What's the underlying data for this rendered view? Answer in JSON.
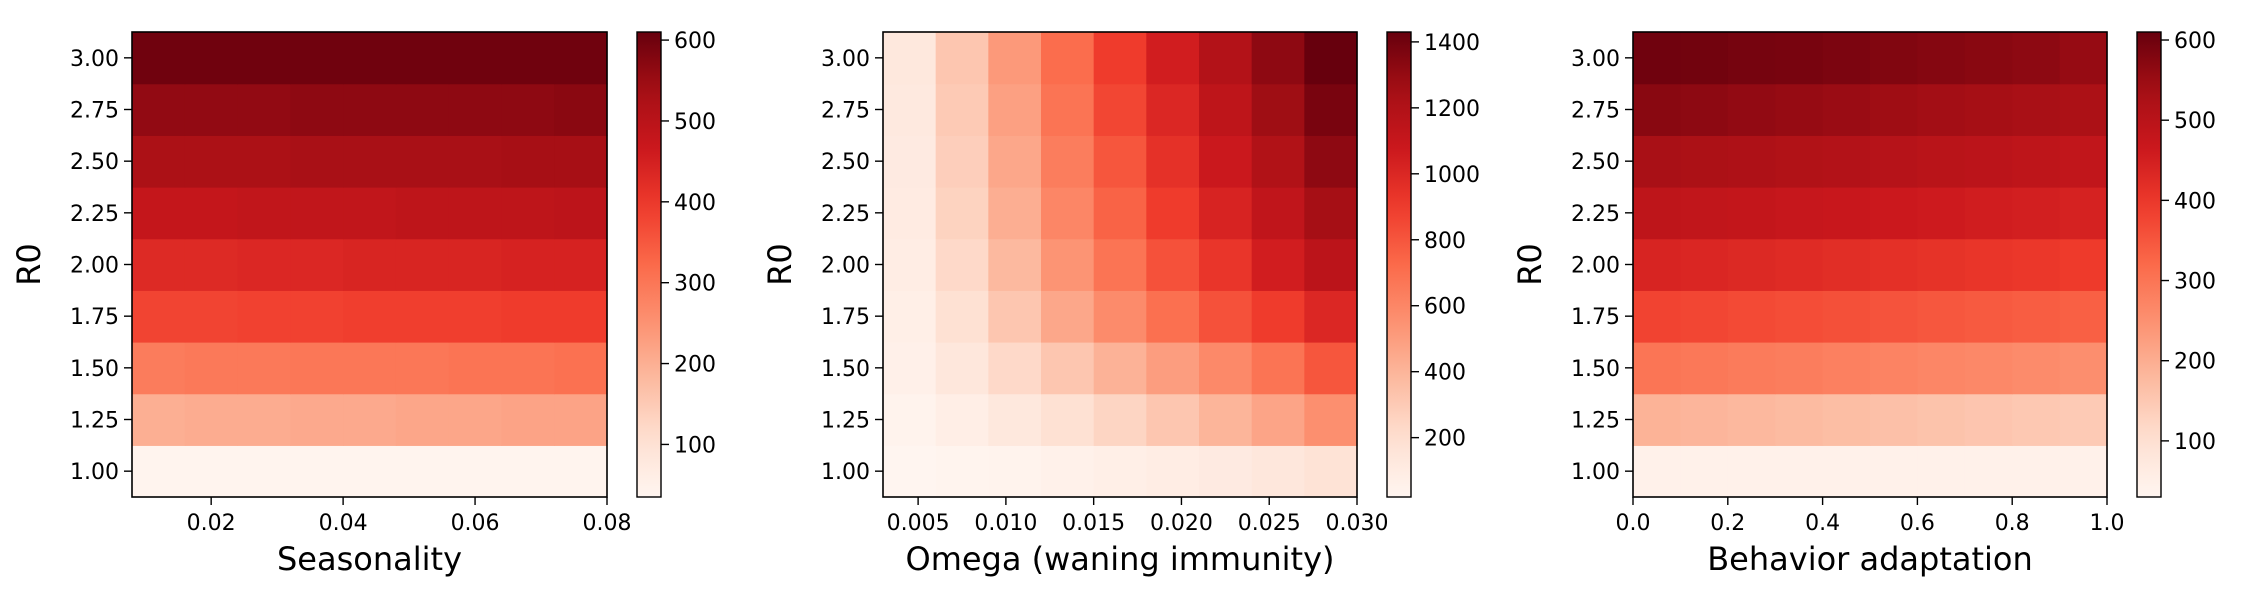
{
  "chart_data": [
    {
      "type": "heatmap",
      "xlabel": "Seasonality",
      "ylabel": "R0",
      "x": [
        0.008,
        0.016,
        0.024,
        0.032,
        0.04,
        0.048,
        0.056,
        0.064,
        0.072,
        0.08
      ],
      "xlim": [
        0.008,
        0.08
      ],
      "x_ticks": [
        0.02,
        0.04,
        0.06,
        0.08
      ],
      "x_tick_labels": [
        "0.02",
        "0.04",
        "0.06",
        "0.08"
      ],
      "y": [
        1.0,
        1.25,
        1.5,
        1.75,
        2.0,
        2.25,
        2.5,
        2.75,
        3.0
      ],
      "y_tick_labels": [
        "1.00",
        "1.25",
        "1.50",
        "1.75",
        "2.00",
        "2.25",
        "2.50",
        "2.75",
        "3.00"
      ],
      "values": [
        [
          40,
          40,
          40,
          40,
          40,
          40,
          40,
          40,
          40
        ],
        [
          200,
          205,
          205,
          210,
          210,
          215,
          215,
          220,
          220
        ],
        [
          290,
          295,
          295,
          300,
          300,
          300,
          305,
          305,
          310
        ],
        [
          380,
          380,
          385,
          385,
          390,
          390,
          390,
          395,
          395
        ],
        [
          430,
          430,
          435,
          435,
          440,
          440,
          440,
          445,
          445
        ],
        [
          480,
          480,
          485,
          485,
          485,
          490,
          490,
          490,
          495
        ],
        [
          525,
          525,
          525,
          530,
          530,
          530,
          530,
          535,
          535
        ],
        [
          560,
          560,
          560,
          565,
          565,
          565,
          565,
          565,
          570
        ],
        [
          600,
          600,
          600,
          600,
          600,
          600,
          600,
          600,
          600
        ]
      ],
      "colorbar": {
        "min": 35,
        "max": 610,
        "ticks": [
          100,
          200,
          300,
          400,
          500,
          600
        ]
      },
      "colormap": "Reds"
    },
    {
      "type": "heatmap",
      "xlabel": "Omega (waning immunity)",
      "ylabel": "R0",
      "x": [
        0.003,
        0.006,
        0.009,
        0.012,
        0.015,
        0.018,
        0.021,
        0.024,
        0.027,
        0.03
      ],
      "xlim": [
        0.003,
        0.03
      ],
      "x_ticks": [
        0.005,
        0.01,
        0.015,
        0.02,
        0.025,
        0.03
      ],
      "x_tick_labels": [
        "0.005",
        "0.010",
        "0.015",
        "0.020",
        "0.025",
        "0.030"
      ],
      "y": [
        1.0,
        1.25,
        1.5,
        1.75,
        2.0,
        2.25,
        2.5,
        2.75,
        3.0
      ],
      "y_tick_labels": [
        "1.00",
        "1.25",
        "1.50",
        "1.75",
        "2.00",
        "2.25",
        "2.50",
        "2.75",
        "3.00"
      ],
      "values": [
        [
          20,
          30,
          40,
          55,
          70,
          90,
          110,
          140,
          170
        ],
        [
          40,
          80,
          130,
          190,
          250,
          320,
          400,
          470,
          560
        ],
        [
          60,
          140,
          230,
          320,
          410,
          500,
          590,
          680,
          800
        ],
        [
          70,
          190,
          320,
          460,
          580,
          700,
          820,
          900,
          1000
        ],
        [
          90,
          230,
          380,
          540,
          680,
          820,
          930,
          1050,
          1150
        ],
        [
          100,
          260,
          430,
          600,
          750,
          900,
          1020,
          1130,
          1250
        ],
        [
          110,
          280,
          460,
          640,
          800,
          950,
          1080,
          1200,
          1320
        ],
        [
          120,
          300,
          490,
          680,
          860,
          1000,
          1140,
          1270,
          1380
        ],
        [
          130,
          320,
          520,
          710,
          900,
          1050,
          1190,
          1320,
          1430
        ]
      ],
      "colorbar": {
        "min": 20,
        "max": 1430,
        "ticks": [
          200,
          400,
          600,
          800,
          1000,
          1200,
          1400
        ]
      },
      "colormap": "Reds"
    },
    {
      "type": "heatmap",
      "xlabel": "Behavior adaptation",
      "ylabel": "R0",
      "x": [
        0.0,
        0.1,
        0.2,
        0.3,
        0.4,
        0.5,
        0.6,
        0.7,
        0.8,
        0.9,
        1.0
      ],
      "xlim": [
        0.0,
        1.0
      ],
      "x_ticks": [
        0.0,
        0.2,
        0.4,
        0.6,
        0.8,
        1.0
      ],
      "x_tick_labels": [
        "0.0",
        "0.2",
        "0.4",
        "0.6",
        "0.8",
        "1.0"
      ],
      "y": [
        1.0,
        1.25,
        1.5,
        1.75,
        2.0,
        2.25,
        2.5,
        2.75,
        3.0
      ],
      "y_tick_labels": [
        "1.00",
        "1.25",
        "1.50",
        "1.75",
        "2.00",
        "2.25",
        "2.50",
        "2.75",
        "3.00"
      ],
      "values": [
        [
          45,
          45,
          45,
          45,
          45,
          45,
          45,
          45,
          45,
          45
        ],
        [
          190,
          185,
          180,
          175,
          170,
          165,
          160,
          155,
          150,
          145
        ],
        [
          300,
          295,
          290,
          285,
          280,
          275,
          270,
          265,
          260,
          255
        ],
        [
          380,
          375,
          370,
          365,
          360,
          355,
          350,
          345,
          340,
          335
        ],
        [
          440,
          435,
          430,
          425,
          420,
          415,
          410,
          405,
          400,
          395
        ],
        [
          490,
          485,
          480,
          475,
          470,
          465,
          460,
          455,
          450,
          445
        ],
        [
          530,
          525,
          520,
          515,
          510,
          505,
          500,
          495,
          490,
          485
        ],
        [
          570,
          565,
          560,
          555,
          550,
          545,
          540,
          535,
          530,
          525
        ],
        [
          600,
          597,
          593,
          590,
          585,
          580,
          575,
          570,
          565,
          555
        ]
      ],
      "colorbar": {
        "min": 30,
        "max": 610,
        "ticks": [
          100,
          200,
          300,
          400,
          500,
          600
        ]
      },
      "colormap": "Reds"
    }
  ]
}
